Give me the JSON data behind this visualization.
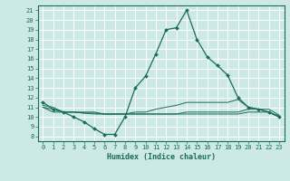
{
  "title": "",
  "xlabel": "Humidex (Indice chaleur)",
  "bg_color": "#cce9e5",
  "line_color": "#1a6b5a",
  "grid_color": "#ffffff",
  "xlim": [
    -0.5,
    23.5
  ],
  "ylim": [
    7.5,
    21.5
  ],
  "yticks": [
    8,
    9,
    10,
    11,
    12,
    13,
    14,
    15,
    16,
    17,
    18,
    19,
    20,
    21
  ],
  "xticks": [
    0,
    1,
    2,
    3,
    4,
    5,
    6,
    7,
    8,
    9,
    10,
    11,
    12,
    13,
    14,
    15,
    16,
    17,
    18,
    19,
    20,
    21,
    22,
    23
  ],
  "main_line_x": [
    0,
    1,
    2,
    3,
    4,
    5,
    6,
    7,
    8,
    9,
    10,
    11,
    12,
    13,
    14,
    15,
    16,
    17,
    18,
    19,
    20,
    21,
    22,
    23
  ],
  "main_line_y": [
    11.5,
    10.8,
    10.5,
    10.0,
    9.5,
    8.8,
    8.2,
    8.2,
    10.0,
    13.0,
    14.2,
    16.5,
    19.0,
    19.2,
    21.0,
    18.0,
    16.2,
    15.3,
    14.3,
    12.0,
    11.0,
    10.8,
    10.5,
    10.0
  ],
  "flat_line1_y": [
    11.2,
    11.0,
    10.5,
    10.5,
    10.5,
    10.5,
    10.3,
    10.3,
    10.3,
    10.5,
    10.5,
    10.8,
    11.0,
    11.2,
    11.5,
    11.5,
    11.5,
    11.5,
    11.5,
    11.8,
    11.0,
    10.8,
    10.8,
    10.2
  ],
  "flat_line2_y": [
    11.0,
    10.8,
    10.5,
    10.5,
    10.4,
    10.4,
    10.3,
    10.3,
    10.3,
    10.3,
    10.3,
    10.3,
    10.3,
    10.3,
    10.5,
    10.5,
    10.5,
    10.5,
    10.5,
    10.5,
    10.8,
    10.8,
    10.5,
    10.1
  ],
  "flat_line3_y": [
    11.0,
    10.5,
    10.5,
    10.5,
    10.4,
    10.3,
    10.3,
    10.3,
    10.3,
    10.3,
    10.3,
    10.3,
    10.3,
    10.3,
    10.3,
    10.3,
    10.3,
    10.3,
    10.3,
    10.3,
    10.5,
    10.5,
    10.5,
    10.0
  ],
  "xlabel_fontsize": 6,
  "tick_fontsize": 5
}
